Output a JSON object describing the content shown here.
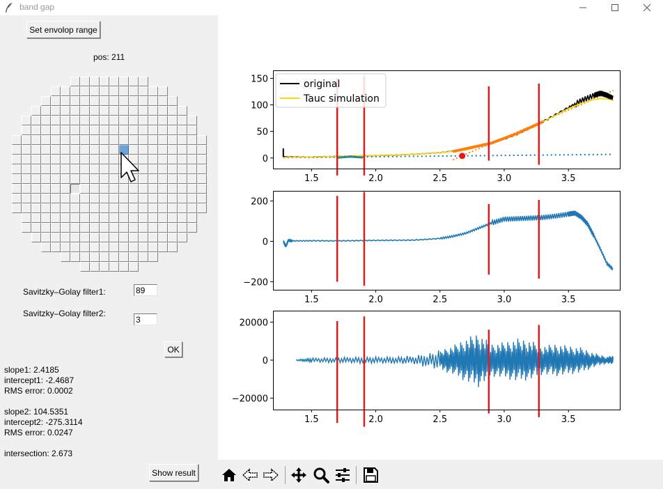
{
  "window": {
    "title": "band gap",
    "minimize": "—",
    "maximize": "☐",
    "close": "✕"
  },
  "left": {
    "envelope_button": "Set envolop range",
    "pos_label": "pos: 211",
    "filter1_label": "Savitzky–Golay filter1:",
    "filter1_value": "89",
    "filter2_label": "Savitzky–Golay filter2:",
    "filter2_value": "3",
    "ok_button": "OK",
    "results": [
      "slope1: 2.4185",
      "intercept1: -2.4687",
      "RMS error: 0.0002",
      "",
      "slope2: 104.5351",
      "intercept2: -275.3114",
      "RMS error: 0.0247",
      "",
      "intersection: 2.673"
    ],
    "show_result_button": "Show result"
  },
  "toolbar": {
    "items": [
      "home-icon",
      "back-arrow-icon",
      "forward-arrow-icon",
      "pan-move-icon",
      "zoom-magnifier-icon",
      "configure-subplots-icon",
      "save-floppy-icon"
    ]
  },
  "colors": {
    "series": "#1f77b4",
    "markers": "#e31a1c",
    "tauc": "#ffd700",
    "fit": "#ff7f0e",
    "original": "#000000"
  },
  "chart_data": [
    {
      "type": "line",
      "xlim": [
        1.2,
        3.9
      ],
      "ylim": [
        -20,
        165
      ],
      "xticks": [
        "1.5",
        "2.0",
        "2.5",
        "3.0",
        "3.5"
      ],
      "yticks": [
        "0",
        "50",
        "100",
        "150"
      ],
      "legend": {
        "placement": "top-left",
        "entries": [
          "original",
          "Tauc simulation"
        ]
      },
      "series": [
        {
          "name": "original",
          "x": [
            1.28,
            1.5,
            1.7,
            1.9,
            2.1,
            2.3,
            2.5,
            2.7,
            2.9,
            3.1,
            3.3,
            3.5,
            3.6,
            3.7,
            3.75,
            3.8,
            3.85
          ],
          "y": [
            2,
            2,
            3,
            4,
            5,
            7,
            10,
            16,
            27,
            45,
            68,
            95,
            108,
            118,
            122,
            118,
            112
          ]
        },
        {
          "name": "Tauc simulation",
          "x": [
            1.28,
            1.5,
            1.7,
            1.9,
            2.1,
            2.3,
            2.5,
            2.7,
            2.9,
            3.1,
            3.3,
            3.5,
            3.6,
            3.7,
            3.75,
            3.8,
            3.85
          ],
          "y": [
            1,
            2,
            3,
            4,
            5,
            7,
            10,
            15,
            27,
            45,
            68,
            93,
            103,
            110,
            112,
            111,
            108
          ]
        },
        {
          "x": [
            1.28,
            3.85
          ],
          "y": [
            0.6,
            6.8
          ]
        },
        {
          "x": [
            2.6,
            3.85
          ],
          "y": [
            -3.5,
            127
          ]
        }
      ],
      "point": {
        "x": 2.673,
        "y": 3.9
      },
      "vlines": [
        1.7,
        1.91,
        2.88,
        3.27
      ]
    },
    {
      "type": "line",
      "xlim": [
        1.2,
        3.9
      ],
      "ylim": [
        -240,
        250
      ],
      "xticks": [
        "1.5",
        "2.0",
        "2.5",
        "3.0",
        "3.5"
      ],
      "yticks": [
        "200",
        "0",
        "−200"
      ],
      "series": [
        {
          "x": [
            1.28,
            1.3,
            1.32,
            1.35,
            1.5,
            1.7,
            1.9,
            2.1,
            2.3,
            2.5,
            2.6,
            2.7,
            2.8,
            2.9,
            3.0,
            3.1,
            3.2,
            3.3,
            3.4,
            3.5,
            3.55,
            3.6,
            3.65,
            3.7,
            3.75,
            3.8,
            3.85
          ],
          "y": [
            0,
            -25,
            5,
            2,
            3,
            2,
            4,
            5,
            6,
            14,
            25,
            40,
            65,
            90,
            110,
            112,
            115,
            118,
            125,
            135,
            140,
            120,
            85,
            25,
            -40,
            -110,
            -140
          ]
        }
      ],
      "vlines": [
        1.7,
        1.91,
        2.88,
        3.27
      ]
    },
    {
      "type": "line",
      "xlim": [
        1.2,
        3.9
      ],
      "ylim": [
        -26000,
        26000
      ],
      "xticks": [
        "1.5",
        "2.0",
        "2.5",
        "3.0",
        "3.5"
      ],
      "yticks": [
        "20000",
        "0",
        "−20000"
      ],
      "series": [
        {
          "x": [
            1.38,
            1.5,
            1.7,
            1.9,
            2.1,
            2.3,
            2.5,
            2.6,
            2.7,
            2.8,
            2.9,
            3.0,
            3.1,
            3.2,
            3.3,
            3.4,
            3.5,
            3.6,
            3.7,
            3.8,
            3.85
          ],
          "amplitude": [
            200,
            1200,
            1500,
            1800,
            1800,
            2500,
            5500,
            8000,
            12000,
            15000,
            9000,
            10000,
            12000,
            11000,
            8000,
            9000,
            8000,
            7000,
            4000,
            2000,
            2500
          ]
        }
      ],
      "vlines": [
        1.7,
        1.91,
        2.88,
        3.27
      ]
    }
  ]
}
